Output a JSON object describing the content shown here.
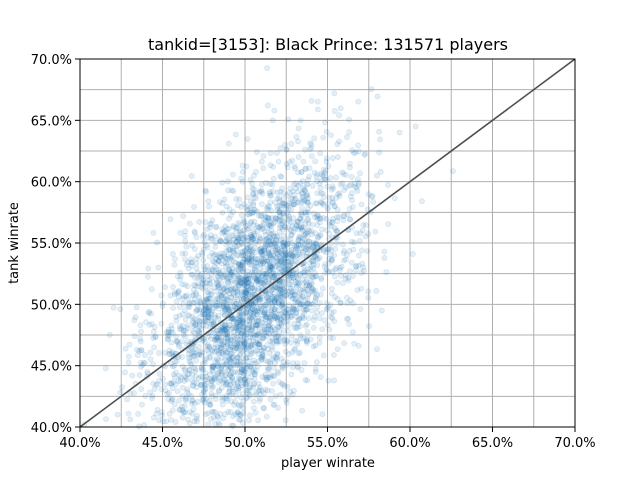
{
  "chart_data": {
    "type": "scatter",
    "title": "tankid=[3153]: Black Prince: 131571 players",
    "xlabel": "player winrate",
    "ylabel": "tank winrate",
    "xlim": [
      0.4,
      0.7
    ],
    "ylim": [
      0.4,
      0.7
    ],
    "xticks": [
      0.4,
      0.45,
      0.5,
      0.55,
      0.6,
      0.65,
      0.7
    ],
    "xtick_labels": [
      "40.0%",
      "45.0%",
      "50.0%",
      "55.0%",
      "60.0%",
      "65.0%",
      "70.0%"
    ],
    "yticks": [
      0.4,
      0.45,
      0.5,
      0.55,
      0.6,
      0.65,
      0.7
    ],
    "ytick_labels": [
      "40.0%",
      "45.0%",
      "50.0%",
      "55.0%",
      "60.0%",
      "65.0%",
      "70.0%"
    ],
    "grid": true,
    "point_color": "#1f77b4",
    "point_alpha": 0.12,
    "reference_line": {
      "from": [
        0.4,
        0.4
      ],
      "to": [
        0.7,
        0.7
      ],
      "color": "#4d4d4d"
    },
    "distribution": {
      "center": [
        0.505,
        0.505
      ],
      "std_x": 0.03,
      "std_y": 0.055,
      "correlation": 0.5,
      "count_drawn": 3000
    }
  }
}
